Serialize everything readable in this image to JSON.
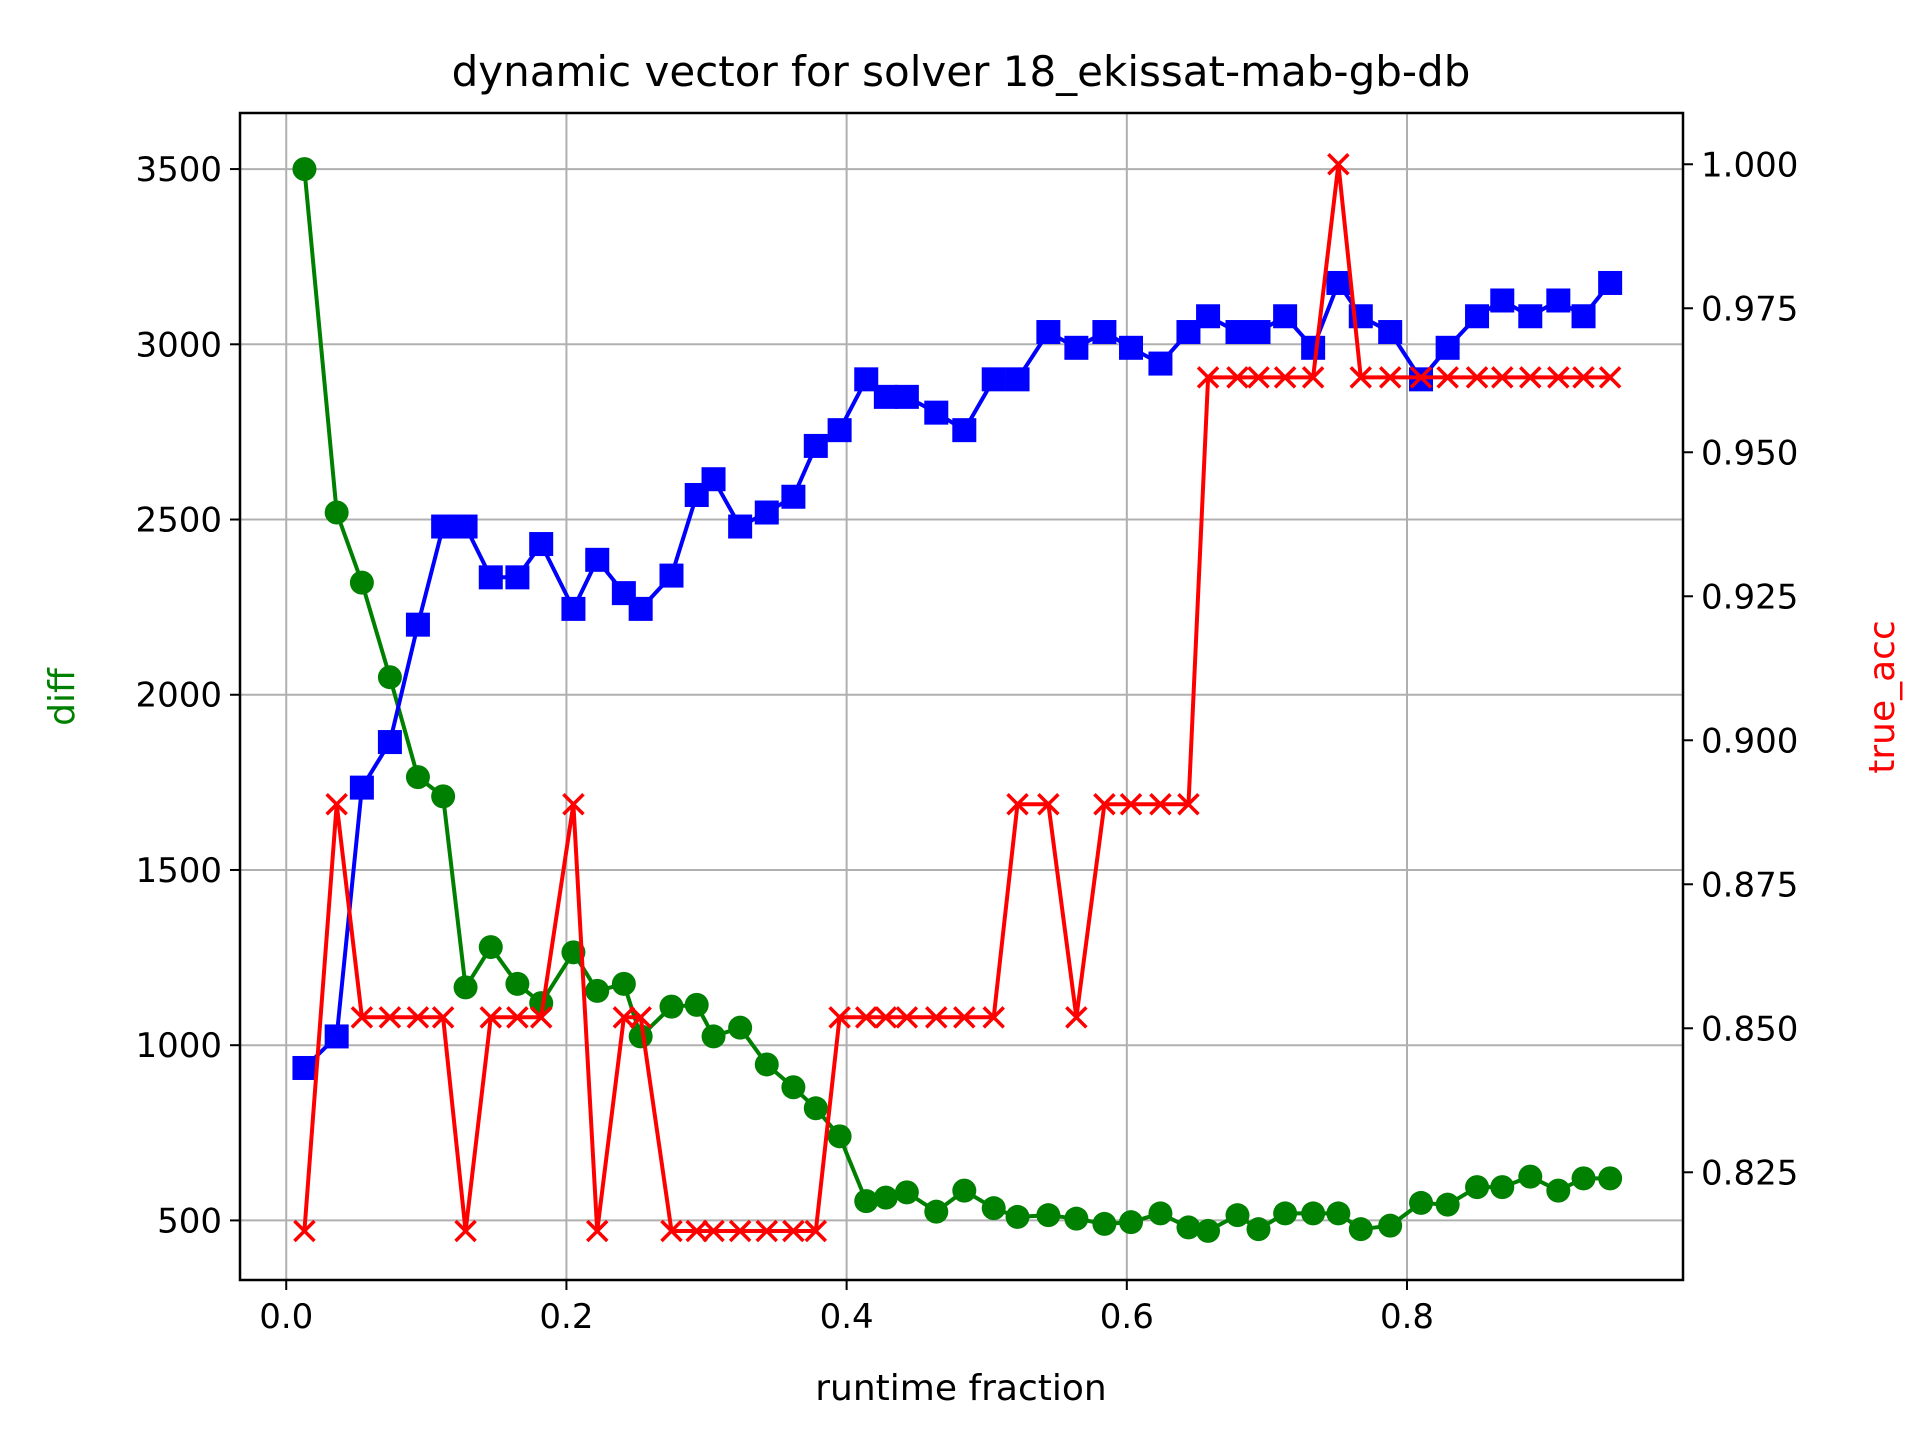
{
  "chart_data": {
    "type": "line",
    "title": "dynamic vector for solver 18_ekissat-mab-gb-db",
    "xlabel": "runtime fraction",
    "ylabel_left": "diff",
    "ylabel_right": "true_acc",
    "xlim": [
      -0.033,
      0.997
    ],
    "ylim_left": [
      330,
      3660
    ],
    "ylim_right": [
      0.8063,
      1.0089
    ],
    "grid": true,
    "x_ticks": [
      0.0,
      0.2,
      0.4,
      0.6,
      0.8
    ],
    "x_tick_labels": [
      "0.0",
      "0.2",
      "0.4",
      "0.6",
      "0.8"
    ],
    "y_left_ticks": [
      500,
      1000,
      1500,
      2000,
      2500,
      3000,
      3500
    ],
    "y_left_tick_labels": [
      "500",
      "1000",
      "1500",
      "2000",
      "2500",
      "3000",
      "3500"
    ],
    "y_right_ticks": [
      0.825,
      0.85,
      0.875,
      0.9,
      0.925,
      0.95,
      0.975,
      1.0
    ],
    "y_right_tick_labels": [
      "0.825",
      "0.850",
      "0.875",
      "0.900",
      "0.925",
      "0.950",
      "0.975",
      "1.000"
    ],
    "colors": {
      "diff": "#008000",
      "blue_series": "#0000ff",
      "true_acc": "#ff0000"
    },
    "x": [
      0.013,
      0.036,
      0.054,
      0.074,
      0.094,
      0.112,
      0.128,
      0.146,
      0.165,
      0.182,
      0.205,
      0.222,
      0.241,
      0.253,
      0.275,
      0.293,
      0.305,
      0.324,
      0.343,
      0.362,
      0.378,
      0.395,
      0.414,
      0.428,
      0.443,
      0.464,
      0.484,
      0.505,
      0.522,
      0.544,
      0.564,
      0.584,
      0.603,
      0.624,
      0.644,
      0.658,
      0.679,
      0.694,
      0.713,
      0.733,
      0.751,
      0.767,
      0.788,
      0.81,
      0.829,
      0.85,
      0.868,
      0.888,
      0.908,
      0.926,
      0.945
    ],
    "series": [
      {
        "axis": "left",
        "marker": "circle",
        "color": "#008000",
        "values": [
          3500,
          2520,
          2320,
          2050,
          1765,
          1710,
          1165,
          1280,
          1175,
          1120,
          1265,
          1155,
          1175,
          1025,
          1110,
          1115,
          1025,
          1050,
          945,
          880,
          820,
          740,
          555,
          565,
          580,
          525,
          585,
          535,
          510,
          515,
          505,
          490,
          495,
          520,
          480,
          470,
          515,
          475,
          520,
          520,
          520,
          475,
          485,
          550,
          545,
          595,
          595,
          625,
          585,
          620,
          620
        ]
      },
      {
        "axis": "left",
        "marker": "square",
        "color": "#0000ff",
        "values": [
          935,
          1025,
          1735,
          1865,
          2200,
          2480,
          2480,
          2335,
          2335,
          2430,
          2245,
          2385,
          2290,
          2245,
          2340,
          2570,
          2615,
          2480,
          2520,
          2565,
          2710,
          2755,
          2900,
          2850,
          2850,
          2805,
          2755,
          2900,
          2900,
          3035,
          2990,
          3035,
          2990,
          2945,
          3035,
          3080,
          3035,
          3035,
          3080,
          2990,
          3175,
          3080,
          3035,
          2900,
          2990,
          3080,
          3125,
          3080,
          3125,
          3080,
          3175
        ]
      },
      {
        "axis": "right",
        "marker": "x",
        "color": "#ff0000",
        "values": [
          0.8148,
          0.8889,
          0.8519,
          0.8519,
          0.8519,
          0.8519,
          0.8148,
          0.8519,
          0.8519,
          0.8519,
          0.8889,
          0.8148,
          0.8519,
          0.8519,
          0.8148,
          0.8148,
          0.8148,
          0.8148,
          0.8148,
          0.8148,
          0.8148,
          0.8519,
          0.8519,
          0.8519,
          0.8519,
          0.8519,
          0.8519,
          0.8519,
          0.8889,
          0.8889,
          0.8519,
          0.8889,
          0.8889,
          0.8889,
          0.8889,
          0.963,
          0.963,
          0.963,
          0.963,
          0.963,
          1.0,
          0.963,
          0.963,
          0.963,
          0.963,
          0.963,
          0.963,
          0.963,
          0.963,
          0.963,
          0.963
        ]
      }
    ]
  }
}
